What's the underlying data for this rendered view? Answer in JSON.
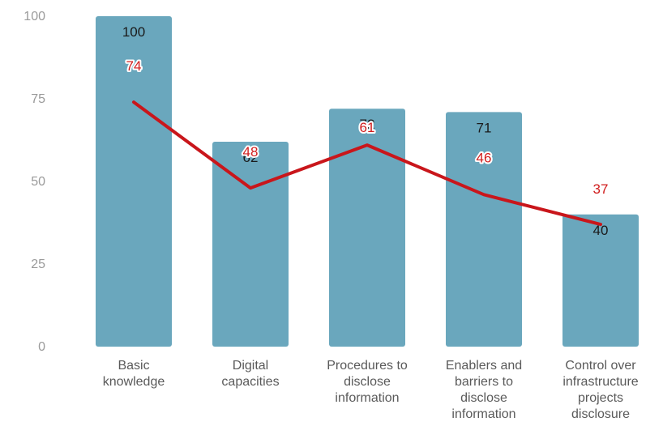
{
  "chart_data": {
    "type": "bar",
    "categories": [
      [
        "Basic",
        "knowledge"
      ],
      [
        "Digital",
        "capacities"
      ],
      [
        "Procedures to",
        "disclose",
        "information"
      ],
      [
        "Enablers and",
        "barriers to",
        "disclose",
        "information"
      ],
      [
        "Control over",
        "infrastructure",
        "projects",
        "disclosure"
      ]
    ],
    "series": [
      {
        "type": "bar",
        "values": [
          100,
          62,
          72,
          71,
          40
        ],
        "color": "#6aa7bd"
      },
      {
        "type": "line",
        "values": [
          74,
          48,
          61,
          46,
          37
        ],
        "color": "#c9161b"
      }
    ],
    "yticks": [
      0,
      25,
      50,
      75,
      100
    ],
    "ylim": [
      0,
      100
    ],
    "grid": false
  }
}
